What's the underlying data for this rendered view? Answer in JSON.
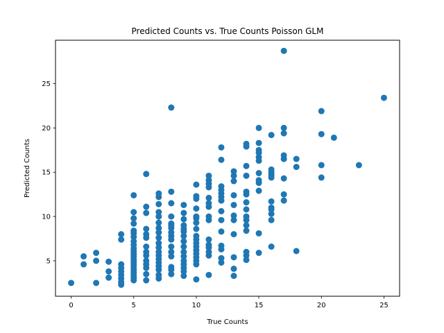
{
  "chart_data": {
    "type": "scatter",
    "title": "Predicted Counts vs. True Counts Poisson GLM",
    "xlabel": "True Counts",
    "ylabel": "Predicted Counts",
    "xlim": [
      -1.25,
      26.25
    ],
    "ylim": [
      1.0,
      29.9
    ],
    "xticks": [
      0,
      5,
      10,
      15,
      20,
      25
    ],
    "yticks": [
      5,
      10,
      15,
      20,
      25
    ],
    "grid": false,
    "point_color": "#1f77b4",
    "series": [
      {
        "points": [
          [
            0,
            2.5
          ],
          [
            1,
            4.6
          ],
          [
            1,
            5.5
          ],
          [
            2,
            2.5
          ],
          [
            2,
            5.0
          ],
          [
            2,
            5.9
          ],
          [
            3,
            3.1
          ],
          [
            3,
            3.8
          ],
          [
            3,
            4.9
          ],
          [
            4,
            2.3
          ],
          [
            4,
            2.6
          ],
          [
            4,
            3.0
          ],
          [
            4,
            3.4
          ],
          [
            4,
            3.8
          ],
          [
            4,
            4.2
          ],
          [
            4,
            4.6
          ],
          [
            4,
            7.4
          ],
          [
            4,
            8.0
          ],
          [
            5,
            2.8
          ],
          [
            5,
            3.1
          ],
          [
            5,
            3.4
          ],
          [
            5,
            3.7
          ],
          [
            5,
            4.0
          ],
          [
            5,
            4.3
          ],
          [
            5,
            4.6
          ],
          [
            5,
            4.9
          ],
          [
            5,
            5.2
          ],
          [
            5,
            5.5
          ],
          [
            5,
            5.8
          ],
          [
            5,
            6.1
          ],
          [
            5,
            6.4
          ],
          [
            5,
            6.8
          ],
          [
            5,
            7.2
          ],
          [
            5,
            7.7
          ],
          [
            5,
            8.1
          ],
          [
            5,
            8.4
          ],
          [
            5,
            9.2
          ],
          [
            5,
            9.8
          ],
          [
            5,
            10.5
          ],
          [
            5,
            12.4
          ],
          [
            6,
            2.8
          ],
          [
            6,
            3.5
          ],
          [
            6,
            4.2
          ],
          [
            6,
            4.6
          ],
          [
            6,
            5.0
          ],
          [
            6,
            5.6
          ],
          [
            6,
            6.0
          ],
          [
            6,
            6.6
          ],
          [
            6,
            7.6
          ],
          [
            6,
            8.0
          ],
          [
            6,
            8.6
          ],
          [
            6,
            10.4
          ],
          [
            6,
            11.1
          ],
          [
            6,
            14.8
          ],
          [
            7,
            3.0
          ],
          [
            7,
            3.4
          ],
          [
            7,
            4.0
          ],
          [
            7,
            4.4
          ],
          [
            7,
            4.8
          ],
          [
            7,
            5.2
          ],
          [
            7,
            5.6
          ],
          [
            7,
            6.0
          ],
          [
            7,
            6.5
          ],
          [
            7,
            7.0
          ],
          [
            7,
            7.6
          ],
          [
            7,
            8.2
          ],
          [
            7,
            8.7
          ],
          [
            7,
            9.3
          ],
          [
            7,
            10.0
          ],
          [
            7,
            10.5
          ],
          [
            7,
            11.4
          ],
          [
            7,
            12.2
          ],
          [
            7,
            12.6
          ],
          [
            8,
            3.5
          ],
          [
            8,
            4.0
          ],
          [
            8,
            4.3
          ],
          [
            8,
            5.5
          ],
          [
            8,
            6.0
          ],
          [
            8,
            6.6
          ],
          [
            8,
            7.4
          ],
          [
            8,
            7.8
          ],
          [
            8,
            8.2
          ],
          [
            8,
            8.7
          ],
          [
            8,
            9.0
          ],
          [
            8,
            9.2
          ],
          [
            8,
            10.0
          ],
          [
            8,
            11.5
          ],
          [
            8,
            12.8
          ],
          [
            8,
            22.3
          ],
          [
            9,
            3.3
          ],
          [
            9,
            3.8
          ],
          [
            9,
            4.2
          ],
          [
            9,
            4.6
          ],
          [
            9,
            5.0
          ],
          [
            9,
            5.5
          ],
          [
            9,
            6.0
          ],
          [
            9,
            6.6
          ],
          [
            9,
            7.2
          ],
          [
            9,
            7.8
          ],
          [
            9,
            8.3
          ],
          [
            9,
            8.6
          ],
          [
            9,
            9.0
          ],
          [
            9,
            9.7
          ],
          [
            9,
            10.4
          ],
          [
            9,
            11.3
          ],
          [
            10,
            2.9
          ],
          [
            10,
            4.6
          ],
          [
            10,
            5.0
          ],
          [
            10,
            5.4
          ],
          [
            10,
            5.8
          ],
          [
            10,
            6.2
          ],
          [
            10,
            6.6
          ],
          [
            10,
            7.0
          ],
          [
            10,
            7.4
          ],
          [
            10,
            7.8
          ],
          [
            10,
            8.6
          ],
          [
            10,
            9.3
          ],
          [
            10,
            9.8
          ],
          [
            10,
            10.0
          ],
          [
            10,
            10.9
          ],
          [
            10,
            12.0
          ],
          [
            10,
            12.3
          ],
          [
            10,
            13.6
          ],
          [
            11,
            3.4
          ],
          [
            11,
            5.6
          ],
          [
            11,
            6.0
          ],
          [
            11,
            6.5
          ],
          [
            11,
            6.8
          ],
          [
            11,
            7.4
          ],
          [
            11,
            9.6
          ],
          [
            11,
            10.0
          ],
          [
            11,
            11.1
          ],
          [
            11,
            11.5
          ],
          [
            11,
            12.1
          ],
          [
            11,
            13.3
          ],
          [
            11,
            13.7
          ],
          [
            11,
            14.1
          ],
          [
            11,
            14.6
          ],
          [
            12,
            4.8
          ],
          [
            12,
            5.3
          ],
          [
            12,
            6.3
          ],
          [
            12,
            6.7
          ],
          [
            12,
            8.3
          ],
          [
            12,
            9.6
          ],
          [
            12,
            10.6
          ],
          [
            12,
            11.8
          ],
          [
            12,
            12.2
          ],
          [
            12,
            12.6
          ],
          [
            12,
            13.0
          ],
          [
            12,
            13.4
          ],
          [
            12,
            16.4
          ],
          [
            12,
            17.8
          ],
          [
            13,
            3.3
          ],
          [
            13,
            4.1
          ],
          [
            13,
            5.4
          ],
          [
            13,
            8.0
          ],
          [
            13,
            9.6
          ],
          [
            13,
            10.1
          ],
          [
            13,
            11.3
          ],
          [
            13,
            12.4
          ],
          [
            13,
            14.0
          ],
          [
            13,
            14.6
          ],
          [
            13,
            15.1
          ],
          [
            14,
            5.1
          ],
          [
            14,
            5.6
          ],
          [
            14,
            6.0
          ],
          [
            14,
            8.4
          ],
          [
            14,
            9.0
          ],
          [
            14,
            9.6
          ],
          [
            14,
            10.0
          ],
          [
            14,
            10.8
          ],
          [
            14,
            11.6
          ],
          [
            14,
            12.5
          ],
          [
            14,
            12.8
          ],
          [
            14,
            14.6
          ],
          [
            14,
            15.7
          ],
          [
            14,
            17.9
          ],
          [
            14,
            18.2
          ],
          [
            15,
            5.9
          ],
          [
            15,
            8.1
          ],
          [
            15,
            12.9
          ],
          [
            15,
            13.8
          ],
          [
            15,
            14.1
          ],
          [
            15,
            14.9
          ],
          [
            15,
            16.3
          ],
          [
            15,
            16.7
          ],
          [
            15,
            17.2
          ],
          [
            15,
            17.5
          ],
          [
            15,
            18.3
          ],
          [
            15,
            20.0
          ],
          [
            16,
            6.6
          ],
          [
            16,
            9.6
          ],
          [
            16,
            10.3
          ],
          [
            16,
            10.8
          ],
          [
            16,
            11.0
          ],
          [
            16,
            11.7
          ],
          [
            16,
            14.4
          ],
          [
            16,
            14.7
          ],
          [
            16,
            15.0
          ],
          [
            16,
            15.3
          ],
          [
            16,
            19.2
          ],
          [
            17,
            11.8
          ],
          [
            17,
            12.5
          ],
          [
            17,
            14.3
          ],
          [
            17,
            16.5
          ],
          [
            17,
            16.9
          ],
          [
            17,
            19.4
          ],
          [
            17,
            20.0
          ],
          [
            17,
            28.7
          ],
          [
            18,
            6.1
          ],
          [
            18,
            15.6
          ],
          [
            18,
            16.5
          ],
          [
            20,
            14.4
          ],
          [
            20,
            15.8
          ],
          [
            20,
            19.3
          ],
          [
            20,
            21.9
          ],
          [
            21,
            18.9
          ],
          [
            23,
            15.8
          ],
          [
            25,
            23.4
          ]
        ]
      }
    ]
  }
}
